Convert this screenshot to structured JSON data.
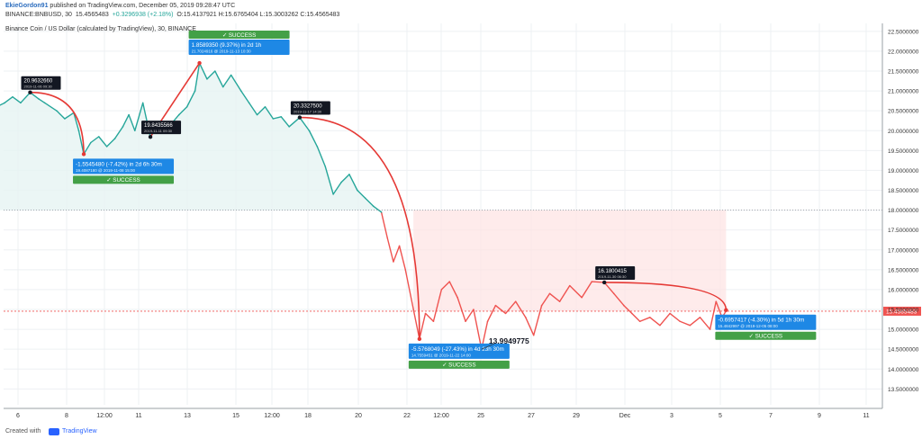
{
  "header": {
    "author": "EkieGordon91",
    "published": "published on TradingView.com, December 05, 2019 09:28:47 UTC",
    "symbol": "BINANCE:BNBUSD, 30",
    "price": "15.4565483",
    "change": "+0.3296938 (+2.18%)",
    "ohlc": "O:15.4137921 H:15.6765404 L:15.3003262 C:15.4565483"
  },
  "legend_title": "Binance Coin / US Dollar (calculated by TradingView), 30, BINANCE",
  "price_tag": "15.4565483",
  "footer": {
    "created_with": "Created with",
    "brand": "TradingView"
  },
  "colors": {
    "line": "#26a69a",
    "down_line": "#ef5350",
    "arc": "#e53935",
    "success": "#43a047",
    "label_blue": "#1e88e5",
    "label_black": "#131722",
    "last_price": "#ef5350"
  },
  "chart_data": {
    "type": "line",
    "title": "Binance Coin / US Dollar (calculated by TradingView), 30, BINANCE",
    "xlabel": "",
    "ylabel": "",
    "ylim": [
      13.1,
      22.7
    ],
    "x_ticks": [
      "6",
      "8",
      "12:00",
      "11",
      "13",
      "15",
      "12:00",
      "18",
      "20",
      "22",
      "12:00",
      "25",
      "27",
      "29",
      "Dec",
      "3",
      "5",
      "7",
      "9",
      "11"
    ],
    "y_ticks": [
      "22.5000000",
      "22.0000000",
      "21.5000000",
      "21.0000000",
      "20.5000000",
      "20.0000000",
      "19.5000000",
      "19.0000000",
      "18.5000000",
      "18.0000000",
      "17.5000000",
      "17.0000000",
      "16.5000000",
      "16.0000000",
      "15.5000000",
      "15.0000000",
      "14.5000000",
      "14.0000000",
      "13.5000000"
    ],
    "grid": true,
    "series": [
      {
        "values": [
          {
            "x": "2019-11-05 00:00",
            "y": 20.6
          },
          {
            "x": "2019-11-05 08:00",
            "y": 20.7
          },
          {
            "x": "2019-11-05 16:00",
            "y": 20.85
          },
          {
            "x": "2019-11-06 00:00",
            "y": 20.7
          },
          {
            "x": "2019-11-06 09:30",
            "y": 20.96
          },
          {
            "x": "2019-11-06 18:00",
            "y": 20.8
          },
          {
            "x": "2019-11-07 00:00",
            "y": 20.7
          },
          {
            "x": "2019-11-07 12:00",
            "y": 20.5
          },
          {
            "x": "2019-11-07 20:00",
            "y": 20.3
          },
          {
            "x": "2019-11-08 05:00",
            "y": 20.45
          },
          {
            "x": "2019-11-08 10:00",
            "y": 20.0
          },
          {
            "x": "2019-11-08 15:00",
            "y": 19.41
          },
          {
            "x": "2019-11-08 22:00",
            "y": 19.7
          },
          {
            "x": "2019-11-09 06:00",
            "y": 19.85
          },
          {
            "x": "2019-11-09 14:00",
            "y": 19.6
          },
          {
            "x": "2019-11-09 22:00",
            "y": 19.8
          },
          {
            "x": "2019-11-10 06:00",
            "y": 20.1
          },
          {
            "x": "2019-11-10 12:00",
            "y": 20.4
          },
          {
            "x": "2019-11-10 18:00",
            "y": 20.0
          },
          {
            "x": "2019-11-11 02:00",
            "y": 20.7
          },
          {
            "x": "2019-11-11 09:30",
            "y": 19.84
          },
          {
            "x": "2019-11-11 18:00",
            "y": 20.2
          },
          {
            "x": "2019-11-12 04:00",
            "y": 20.1
          },
          {
            "x": "2019-11-12 14:00",
            "y": 20.4
          },
          {
            "x": "2019-11-12 22:00",
            "y": 20.6
          },
          {
            "x": "2019-11-13 06:00",
            "y": 21.0
          },
          {
            "x": "2019-11-13 10:30",
            "y": 21.7
          },
          {
            "x": "2019-11-13 18:00",
            "y": 21.3
          },
          {
            "x": "2019-11-14 02:00",
            "y": 21.5
          },
          {
            "x": "2019-11-14 10:00",
            "y": 21.1
          },
          {
            "x": "2019-11-14 18:00",
            "y": 21.4
          },
          {
            "x": "2019-11-15 04:00",
            "y": 21.0
          },
          {
            "x": "2019-11-15 12:00",
            "y": 20.7
          },
          {
            "x": "2019-11-15 20:00",
            "y": 20.4
          },
          {
            "x": "2019-11-16 04:00",
            "y": 20.6
          },
          {
            "x": "2019-11-16 12:00",
            "y": 20.3
          },
          {
            "x": "2019-11-16 20:00",
            "y": 20.35
          },
          {
            "x": "2019-11-17 04:00",
            "y": 20.1
          },
          {
            "x": "2019-11-17 14:30",
            "y": 20.33
          },
          {
            "x": "2019-11-18 00:00",
            "y": 20.0
          },
          {
            "x": "2019-11-18 08:00",
            "y": 19.6
          },
          {
            "x": "2019-11-18 16:00",
            "y": 19.1
          },
          {
            "x": "2019-11-19 00:00",
            "y": 18.4
          },
          {
            "x": "2019-11-19 08:00",
            "y": 18.7
          },
          {
            "x": "2019-11-19 16:00",
            "y": 18.9
          },
          {
            "x": "2019-11-20 00:00",
            "y": 18.5
          },
          {
            "x": "2019-11-20 08:00",
            "y": 18.3
          },
          {
            "x": "2019-11-20 16:00",
            "y": 18.1
          },
          {
            "x": "2019-11-21 00:00",
            "y": 17.95
          },
          {
            "x": "2019-11-21 06:00",
            "y": 17.3
          },
          {
            "x": "2019-11-21 12:00",
            "y": 16.7
          },
          {
            "x": "2019-11-21 18:00",
            "y": 17.1
          },
          {
            "x": "2019-11-22 00:00",
            "y": 16.5
          },
          {
            "x": "2019-11-22 08:00",
            "y": 15.5
          },
          {
            "x": "2019-11-22 14:00",
            "y": 14.76
          },
          {
            "x": "2019-11-22 20:00",
            "y": 15.4
          },
          {
            "x": "2019-11-23 04:00",
            "y": 15.2
          },
          {
            "x": "2019-11-23 12:00",
            "y": 16.0
          },
          {
            "x": "2019-11-23 20:00",
            "y": 16.2
          },
          {
            "x": "2019-11-24 04:00",
            "y": 15.8
          },
          {
            "x": "2019-11-24 12:00",
            "y": 15.2
          },
          {
            "x": "2019-11-24 20:00",
            "y": 15.5
          },
          {
            "x": "2019-11-25 04:00",
            "y": 14.5
          },
          {
            "x": "2019-11-25 10:00",
            "y": 15.2
          },
          {
            "x": "2019-11-25 18:00",
            "y": 15.6
          },
          {
            "x": "2019-11-26 04:00",
            "y": 15.4
          },
          {
            "x": "2019-11-26 14:00",
            "y": 15.7
          },
          {
            "x": "2019-11-27 00:00",
            "y": 15.3
          },
          {
            "x": "2019-11-27 08:00",
            "y": 14.85
          },
          {
            "x": "2019-11-27 16:00",
            "y": 15.6
          },
          {
            "x": "2019-11-28 00:00",
            "y": 15.9
          },
          {
            "x": "2019-11-28 10:00",
            "y": 15.7
          },
          {
            "x": "2019-11-28 20:00",
            "y": 16.1
          },
          {
            "x": "2019-11-29 08:00",
            "y": 15.8
          },
          {
            "x": "2019-11-29 18:00",
            "y": 16.2
          },
          {
            "x": "2019-11-30 06:30",
            "y": 16.18
          },
          {
            "x": "2019-11-30 16:00",
            "y": 15.9
          },
          {
            "x": "2019-12-01 02:00",
            "y": 15.6
          },
          {
            "x": "2019-12-01 10:00",
            "y": 15.4
          },
          {
            "x": "2019-12-01 18:00",
            "y": 15.2
          },
          {
            "x": "2019-12-02 04:00",
            "y": 15.3
          },
          {
            "x": "2019-12-02 14:00",
            "y": 15.1
          },
          {
            "x": "2019-12-03 00:00",
            "y": 15.4
          },
          {
            "x": "2019-12-03 10:00",
            "y": 15.2
          },
          {
            "x": "2019-12-03 20:00",
            "y": 15.1
          },
          {
            "x": "2019-12-04 06:00",
            "y": 15.3
          },
          {
            "x": "2019-12-04 16:00",
            "y": 15.0
          },
          {
            "x": "2019-12-04 22:00",
            "y": 15.7
          },
          {
            "x": "2019-12-05 04:00",
            "y": 15.3
          },
          {
            "x": "2019-12-05 08:00",
            "y": 15.46
          }
        ]
      }
    ],
    "reference_lines": [
      {
        "y": 18.0,
        "style": "dotted"
      },
      {
        "y": 15.4565483,
        "style": "last-price"
      }
    ],
    "callouts": [
      {
        "from": {
          "x": "2019-11-06 09:30",
          "y": 20.963266
        },
        "to": {
          "x": "2019-11-08 15:00",
          "y": 19.408718
        },
        "from_label": "20.9632660",
        "from_time": "2019-11-06 09:30",
        "result": "-1.5545480 (-7.42%) in 2d 6h 30m",
        "result_time": "19.4087180 @ 2019-11-08  15:00",
        "status": "SUCCESS",
        "label_below": true
      },
      {
        "from": {
          "x": "2019-11-11 09:30",
          "y": 19.8435566
        },
        "to": {
          "x": "2019-11-13 10:30",
          "y": 21.7024916
        },
        "from_label": "19.8435566",
        "from_time": "2019-11-11 09:30",
        "result": "1.8589350 (9.37%) in 2d 1h",
        "result_time": "21.7024916 @ 2019-11-13  10:30",
        "status": "SUCCESS",
        "label_below": false
      },
      {
        "from": {
          "x": "2019-11-17 14:30",
          "y": 20.33275
        },
        "to": {
          "x": "2019-11-22 14:00",
          "y": 14.7559451
        },
        "from_label": "20.3327500",
        "from_time": "2019-11-17 14:30",
        "result": "-5.5768049 (-27.43%) in 4d 23h 30m",
        "result_time": "14.7559451 @ 2019-11-22  14:00",
        "status": "SUCCESS",
        "label_below": true
      },
      {
        "from": {
          "x": "2019-11-30 06:30",
          "y": 16.1800415
        },
        "to": {
          "x": "2019-12-05 08:00",
          "y": 15.4842997
        },
        "from_label": "16.1800415",
        "from_time": "2019-11-30 06:30",
        "result": "-0.6957417 (-4.30%) in 5d 1h 30m",
        "result_time": "15.4842997 @ 2019-12-05  08:00",
        "status": "SUCCESS",
        "label_below": true
      }
    ],
    "annotation": {
      "x": "2019-11-25 04:00",
      "y": 14.5,
      "text": "13.9949775"
    }
  }
}
